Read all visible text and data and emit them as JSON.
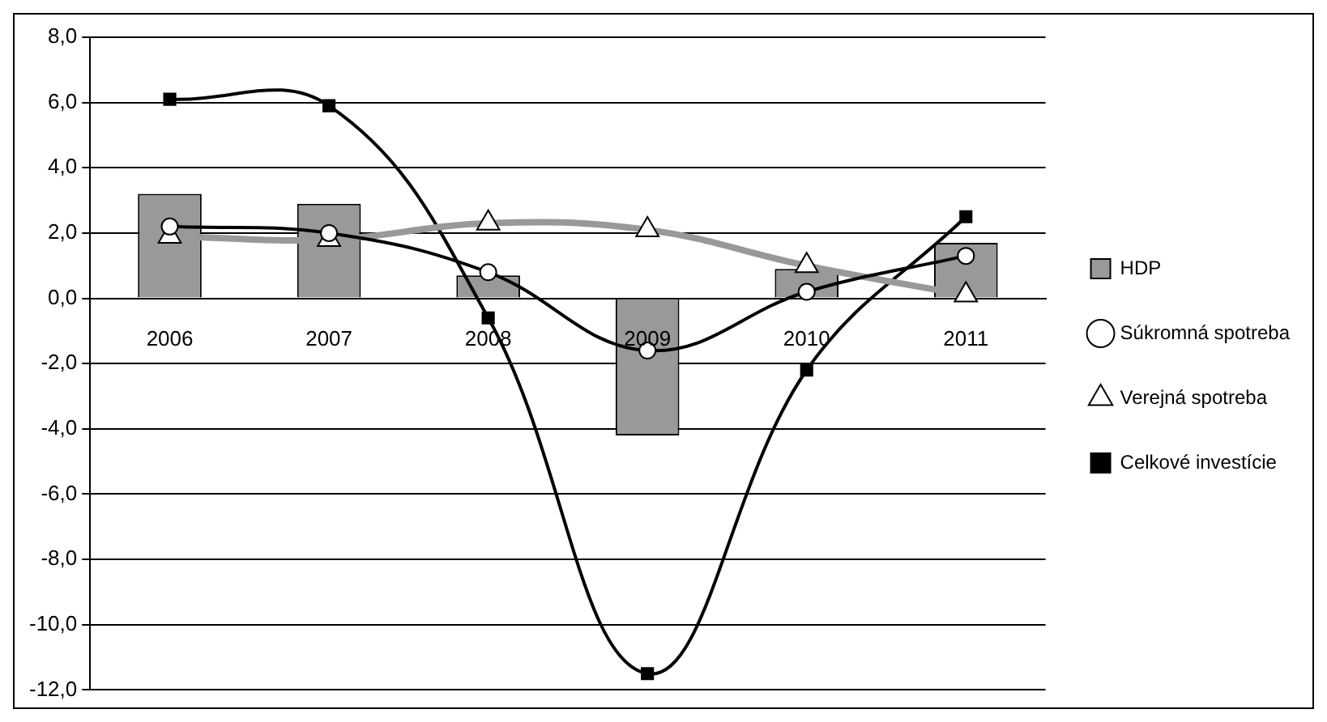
{
  "chart_data": {
    "type": "bar",
    "categories": [
      "2006",
      "2007",
      "2008",
      "2009",
      "2010",
      "2011"
    ],
    "series": [
      {
        "name": "HDP",
        "color": "#999999",
        "values": [
          3.2,
          2.9,
          0.7,
          -4.2,
          0.9,
          1.7
        ]
      },
      {
        "name": "Súkromná spotreba",
        "type": "line",
        "color": "#000000",
        "marker": "circle",
        "values": [
          2.2,
          2.0,
          0.8,
          -1.6,
          0.2,
          1.3
        ]
      },
      {
        "name": "Verejná spotreba",
        "type": "line",
        "color": "#999999",
        "marker": "triangle",
        "values": [
          1.9,
          1.8,
          2.3,
          2.1,
          1.0,
          0.1
        ]
      },
      {
        "name": "Celkové investície",
        "type": "line",
        "color": "#000000",
        "marker": "square",
        "values": [
          6.1,
          5.9,
          -0.6,
          -11.5,
          -2.2,
          2.5
        ]
      }
    ],
    "ylim": [
      -12,
      8
    ],
    "yticks": [
      {
        "value": -12,
        "label": "-12,0"
      },
      {
        "value": -10,
        "label": "-10,0"
      },
      {
        "value": -8,
        "label": "-8,0"
      },
      {
        "value": -6,
        "label": "-6,0"
      },
      {
        "value": -4,
        "label": "-4,0"
      },
      {
        "value": -2,
        "label": "-2,0"
      },
      {
        "value": 0,
        "label": "0,0"
      },
      {
        "value": 2,
        "label": "2,0"
      },
      {
        "value": 4,
        "label": "4,0"
      },
      {
        "value": 6,
        "label": "6,0"
      },
      {
        "value": 8,
        "label": "8,0"
      }
    ],
    "grid": "y",
    "legend": "right"
  }
}
